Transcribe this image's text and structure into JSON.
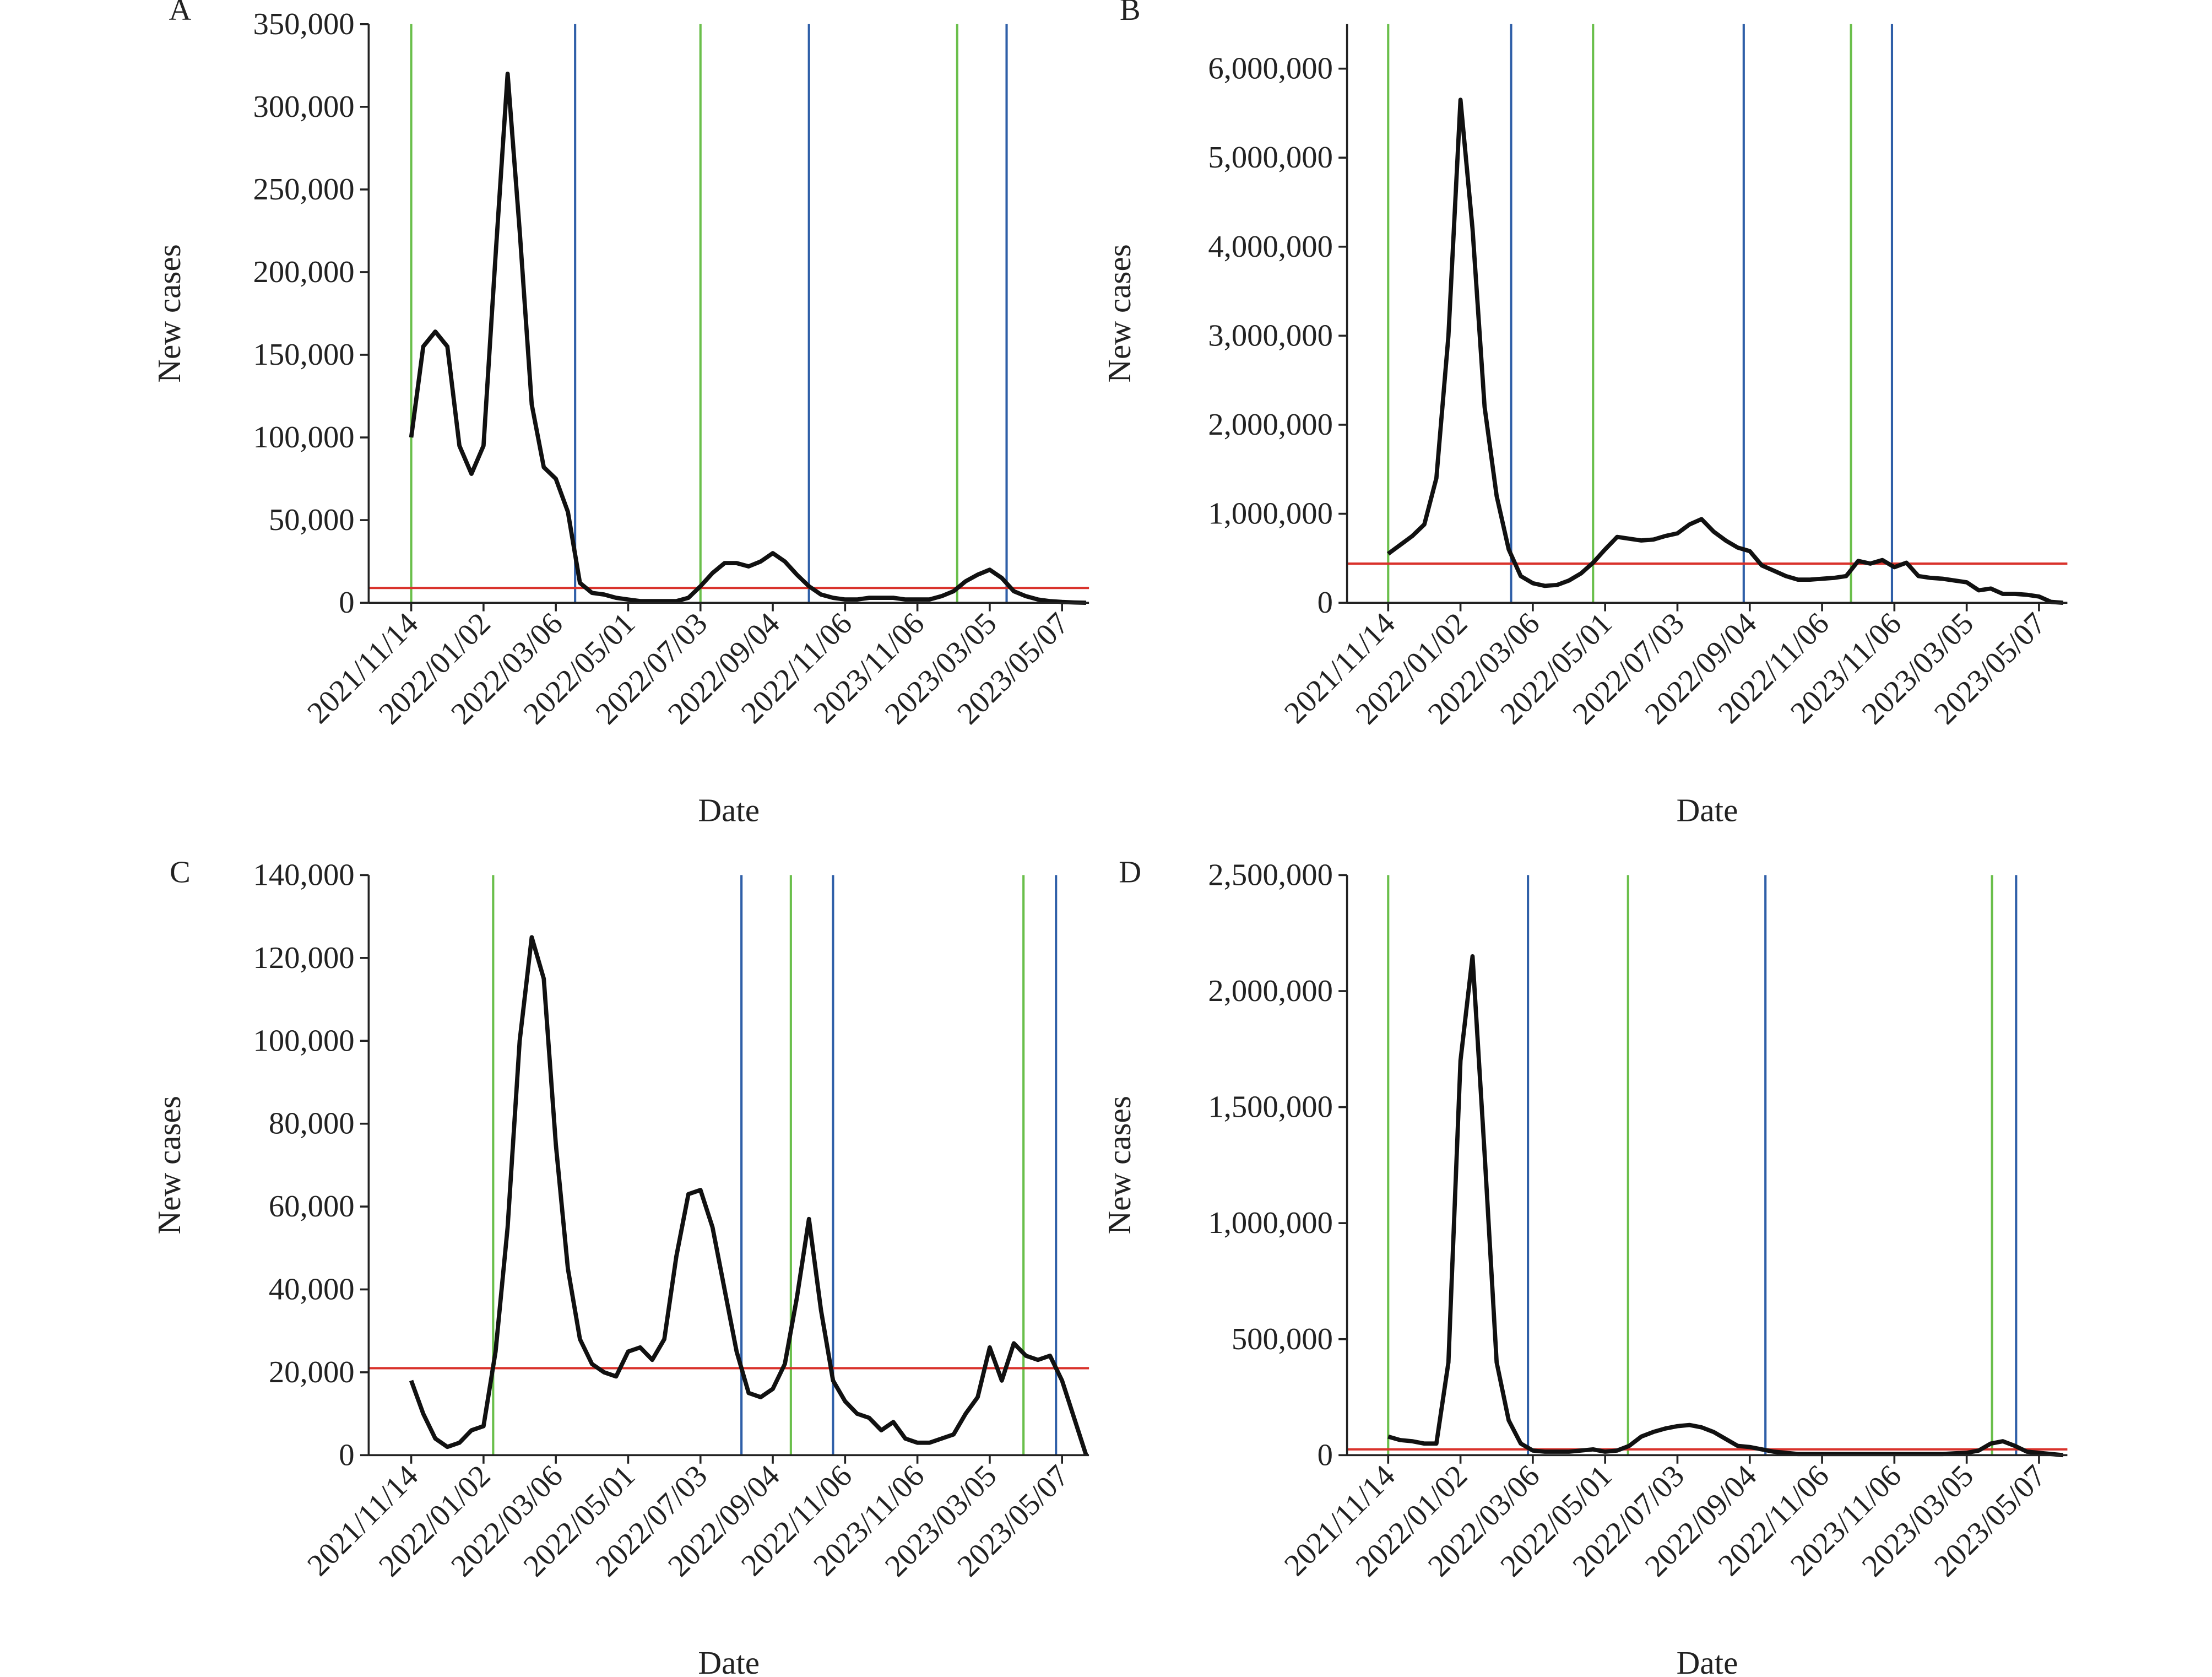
{
  "chart_data": [
    {
      "type": "line",
      "title": "A",
      "ylabel": "New cases",
      "xlabel": "Date",
      "categories": [
        "2021/11/14",
        null,
        null,
        null,
        null,
        null,
        "2022/01/02",
        null,
        null,
        null,
        null,
        null,
        "2022/03/06",
        null,
        null,
        null,
        null,
        null,
        "2022/05/01",
        null,
        null,
        null,
        null,
        null,
        "2022/07/03",
        null,
        null,
        null,
        null,
        null,
        "2022/09/04",
        null,
        null,
        null,
        null,
        null,
        "2022/11/06",
        null,
        null,
        null,
        null,
        null,
        "2023/11/06",
        null,
        null,
        null,
        null,
        null,
        "2023/03/05",
        null,
        null,
        null,
        null,
        null,
        "2023/05/07",
        null,
        null
      ],
      "series": [
        {
          "color": "#111111",
          "values": [
            100000,
            155000,
            164000,
            155000,
            95000,
            78000,
            95000,
            210000,
            320000,
            225000,
            120000,
            82000,
            75000,
            55000,
            12000,
            6000,
            5000,
            3000,
            2000,
            1000,
            1000,
            1000,
            1000,
            3000,
            10000,
            18000,
            24000,
            24000,
            22000,
            25000,
            30000,
            25000,
            17000,
            10000,
            5000,
            3000,
            2000,
            2000,
            3000,
            3000,
            3000,
            2000,
            2000,
            2000,
            4000,
            7000,
            13000,
            17000,
            20000,
            15000,
            7000,
            4000,
            2000,
            1000,
            500,
            200,
            0
          ]
        }
      ],
      "ylim": [
        0,
        350000
      ],
      "yticks": [
        0,
        {
          "value": 50000,
          "label": "50,000"
        },
        {
          "value": 100000,
          "label": "100,000"
        },
        {
          "value": 150000,
          "label": "150,000"
        },
        {
          "value": 200000,
          "label": "200,000"
        },
        {
          "value": 250000,
          "label": "250,000"
        },
        {
          "value": 300000,
          "label": "300,000"
        },
        {
          "value": 350000,
          "label": "350,000"
        }
      ],
      "threshold": 9000,
      "threshold_color": "#d9322b",
      "vlines": [
        {
          "x": 0,
          "color": "#6abf4b"
        },
        {
          "x": 13.6,
          "color": "#2f5fa8"
        },
        {
          "x": 24,
          "color": "#6abf4b"
        },
        {
          "x": 33,
          "color": "#2f5fa8"
        },
        {
          "x": 45.3,
          "color": "#6abf4b"
        },
        {
          "x": 49.4,
          "color": "#2f5fa8"
        }
      ]
    },
    {
      "type": "line",
      "title": "B",
      "ylabel": "New cases",
      "xlabel": "Date",
      "categories": [
        "2021/11/14",
        null,
        null,
        null,
        null,
        null,
        "2022/01/02",
        null,
        null,
        null,
        null,
        null,
        "2022/03/06",
        null,
        null,
        null,
        null,
        null,
        "2022/05/01",
        null,
        null,
        null,
        null,
        null,
        "2022/07/03",
        null,
        null,
        null,
        null,
        null,
        "2022/09/04",
        null,
        null,
        null,
        null,
        null,
        "2022/11/06",
        null,
        null,
        null,
        null,
        null,
        "2023/11/06",
        null,
        null,
        null,
        null,
        null,
        "2023/03/05",
        null,
        null,
        null,
        null,
        null,
        "2023/05/07",
        null,
        null
      ],
      "series": [
        {
          "color": "#111111",
          "values": [
            550000,
            650000,
            750000,
            880000,
            1400000,
            3000000,
            5650000,
            4200000,
            2200000,
            1200000,
            600000,
            300000,
            220000,
            190000,
            200000,
            250000,
            330000,
            450000,
            600000,
            740000,
            720000,
            700000,
            710000,
            750000,
            780000,
            880000,
            940000,
            800000,
            700000,
            620000,
            580000,
            420000,
            360000,
            300000,
            260000,
            260000,
            270000,
            280000,
            300000,
            470000,
            440000,
            480000,
            400000,
            450000,
            300000,
            280000,
            270000,
            250000,
            230000,
            140000,
            160000,
            100000,
            100000,
            90000,
            70000,
            10000,
            0
          ]
        }
      ],
      "ylim": [
        0,
        6500000
      ],
      "yticks": [
        0,
        {
          "value": 1000000,
          "label": "1,000,000"
        },
        {
          "value": 2000000,
          "label": "2,000,000"
        },
        {
          "value": 3000000,
          "label": "3,000,000"
        },
        {
          "value": 4000000,
          "label": "4,000,000"
        },
        {
          "value": 5000000,
          "label": "5,000,000"
        },
        {
          "value": 6000000,
          "label": "6,000,000"
        }
      ],
      "threshold": 440000,
      "threshold_color": "#d9322b",
      "vlines": [
        {
          "x": 0,
          "color": "#6abf4b"
        },
        {
          "x": 10.2,
          "color": "#2f5fa8"
        },
        {
          "x": 17,
          "color": "#6abf4b"
        },
        {
          "x": 29.5,
          "color": "#2f5fa8"
        },
        {
          "x": 38.4,
          "color": "#6abf4b"
        },
        {
          "x": 41.8,
          "color": "#2f5fa8"
        }
      ]
    },
    {
      "type": "line",
      "title": "C",
      "ylabel": "New cases",
      "xlabel": "Date",
      "categories": [
        "2021/11/14",
        null,
        null,
        null,
        null,
        null,
        "2022/01/02",
        null,
        null,
        null,
        null,
        null,
        "2022/03/06",
        null,
        null,
        null,
        null,
        null,
        "2022/05/01",
        null,
        null,
        null,
        null,
        null,
        "2022/07/03",
        null,
        null,
        null,
        null,
        null,
        "2022/09/04",
        null,
        null,
        null,
        null,
        null,
        "2022/11/06",
        null,
        null,
        null,
        null,
        null,
        "2023/11/06",
        null,
        null,
        null,
        null,
        null,
        "2023/03/05",
        null,
        null,
        null,
        null,
        null,
        "2023/05/07",
        null,
        null
      ],
      "series": [
        {
          "color": "#111111",
          "values": [
            18000,
            10000,
            4000,
            2000,
            3000,
            6000,
            7000,
            25000,
            55000,
            100000,
            125000,
            115000,
            75000,
            45000,
            28000,
            22000,
            20000,
            19000,
            25000,
            26000,
            23000,
            28000,
            48000,
            63000,
            64000,
            55000,
            40000,
            25000,
            15000,
            14000,
            16000,
            22000,
            38000,
            57000,
            35000,
            18000,
            13000,
            10000,
            9000,
            6000,
            8000,
            4000,
            3000,
            3000,
            4000,
            5000,
            10000,
            14000,
            26000,
            18000,
            27000,
            24000,
            23000,
            24000,
            18000,
            9000,
            0
          ]
        }
      ],
      "ylim": [
        0,
        140000
      ],
      "yticks": [
        0,
        {
          "value": 20000,
          "label": "20,000"
        },
        {
          "value": 40000,
          "label": "40,000"
        },
        {
          "value": 60000,
          "label": "60,000"
        },
        {
          "value": 80000,
          "label": "80,000"
        },
        {
          "value": 100000,
          "label": "100,000"
        },
        {
          "value": 120000,
          "label": "120,000"
        },
        {
          "value": 140000,
          "label": "140,000"
        }
      ],
      "threshold": 21000,
      "threshold_color": "#d9322b",
      "vlines": [
        {
          "x": 6.8,
          "color": "#6abf4b"
        },
        {
          "x": 27.4,
          "color": "#2f5fa8"
        },
        {
          "x": 31.5,
          "color": "#6abf4b"
        },
        {
          "x": 35,
          "color": "#2f5fa8"
        },
        {
          "x": 50.8,
          "color": "#6abf4b"
        },
        {
          "x": 53.5,
          "color": "#2f5fa8"
        }
      ]
    },
    {
      "type": "line",
      "title": "D",
      "ylabel": "New cases",
      "xlabel": "Date",
      "categories": [
        "2021/11/14",
        null,
        null,
        null,
        null,
        null,
        "2022/01/02",
        null,
        null,
        null,
        null,
        null,
        "2022/03/06",
        null,
        null,
        null,
        null,
        null,
        "2022/05/01",
        null,
        null,
        null,
        null,
        null,
        "2022/07/03",
        null,
        null,
        null,
        null,
        null,
        "2022/09/04",
        null,
        null,
        null,
        null,
        null,
        "2022/11/06",
        null,
        null,
        null,
        null,
        null,
        "2023/11/06",
        null,
        null,
        null,
        null,
        null,
        "2023/03/05",
        null,
        null,
        null,
        null,
        null,
        "2023/05/07",
        null,
        null
      ],
      "series": [
        {
          "color": "#111111",
          "values": [
            80000,
            65000,
            60000,
            50000,
            50000,
            400000,
            1700000,
            2150000,
            1300000,
            400000,
            150000,
            50000,
            20000,
            15000,
            15000,
            15000,
            20000,
            25000,
            15000,
            20000,
            40000,
            80000,
            100000,
            115000,
            125000,
            130000,
            120000,
            100000,
            70000,
            40000,
            35000,
            25000,
            15000,
            10000,
            5000,
            5000,
            5000,
            5000,
            5000,
            5000,
            5000,
            5000,
            5000,
            5000,
            5000,
            5000,
            5000,
            8000,
            10000,
            20000,
            50000,
            60000,
            40000,
            15000,
            10000,
            5000,
            0
          ]
        }
      ],
      "ylim": [
        0,
        2500000
      ],
      "yticks": [
        0,
        {
          "value": 500000,
          "label": "500,000"
        },
        {
          "value": 1000000,
          "label": "1,000,000"
        },
        {
          "value": 1500000,
          "label": "1,500,000"
        },
        {
          "value": 2000000,
          "label": "2,000,000"
        },
        {
          "value": 2500000,
          "label": "2,500,000"
        }
      ],
      "threshold": 25000,
      "threshold_color": "#d9322b",
      "vlines": [
        {
          "x": 0,
          "color": "#6abf4b"
        },
        {
          "x": 11.6,
          "color": "#2f5fa8"
        },
        {
          "x": 19.9,
          "color": "#6abf4b"
        },
        {
          "x": 31.3,
          "color": "#2f5fa8"
        },
        {
          "x": 50.1,
          "color": "#6abf4b"
        },
        {
          "x": 52.1,
          "color": "#2f5fa8"
        }
      ]
    }
  ]
}
